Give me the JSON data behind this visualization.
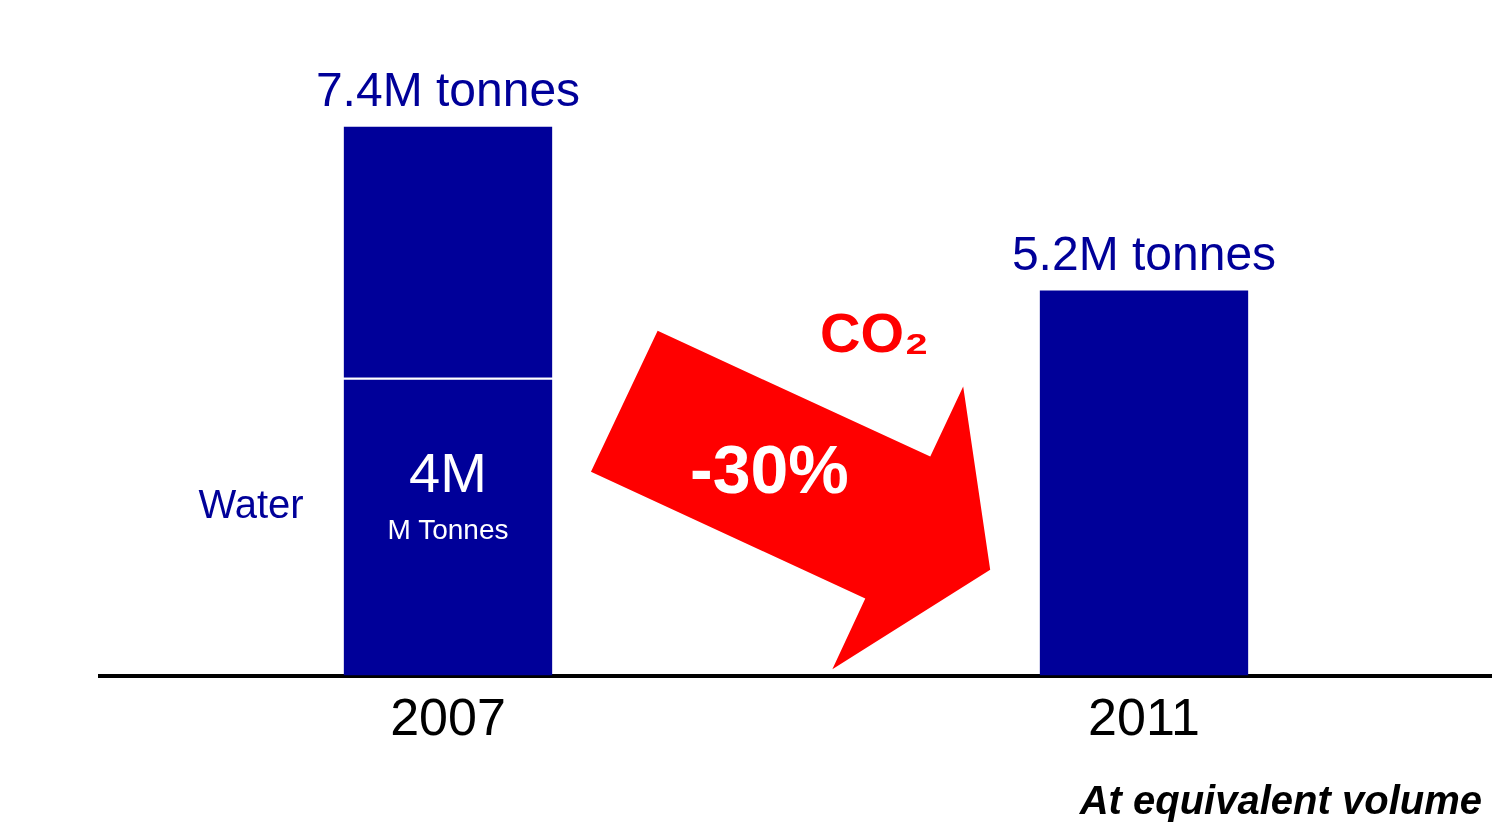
{
  "chart_data": {
    "type": "bar",
    "stacked": true,
    "grid": false,
    "categories": [
      "2007",
      "2011"
    ],
    "series": [
      {
        "name": "Water",
        "color": "#000099",
        "values": [
          4,
          null
        ],
        "value_labels": [
          "4M",
          null
        ]
      },
      {
        "color": "#000099",
        "values": [
          3.4,
          5.2
        ],
        "value_labels": [
          null,
          null
        ]
      }
    ],
    "totals": [
      "7.4M tonnes",
      "5.2M tonnes"
    ],
    "annotations": [
      "CO₂",
      "-30%",
      "M Tonnes",
      "At equivalent  volume"
    ]
  }
}
